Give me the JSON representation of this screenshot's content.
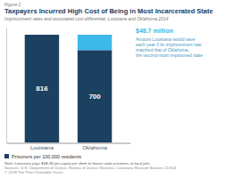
{
  "chart_data": {
    "type": "bar",
    "figure_label": "Figure 2",
    "title": "Taxpayers Incurred High Cost of Being in Most Incarcerated State",
    "subtitle": "Imprisonment rates and associated cost differential, Louisiana and Oklahoma 2014",
    "categories": [
      "Louisiana",
      "Oklahoma"
    ],
    "series": [
      {
        "name": "Prisoners per 100,000 residents",
        "color": "#1b4060",
        "values": [
          816,
          700
        ],
        "data_labels": true
      },
      {
        "color": "#3db8e8",
        "values": [
          null,
          116
        ]
      }
    ],
    "stacked": true,
    "ylim": [
      0,
      870
    ],
    "tick_labels": "x",
    "legend": "bottom",
    "annotations": [
      {
        "text": "$48.7 million",
        "color": "#3db8e8"
      },
      {
        "text": "Amount Louisiana would save\neach year if its imprisonment rate\nmatched that of Oklahoma,\nthe second-most imprisoned state",
        "color": "#4a9abf"
      }
    ],
    "note": "Note: Louisiana pays $24.39 per capita per diem to house state prisoners in local jails.",
    "sources": [
      "Sources: U.S. Department of Justice, Bureau of Justice Statistics; Louisiana Revised Statutes 15:824",
      "© 2018 The Pew Charitable Trusts"
    ]
  }
}
